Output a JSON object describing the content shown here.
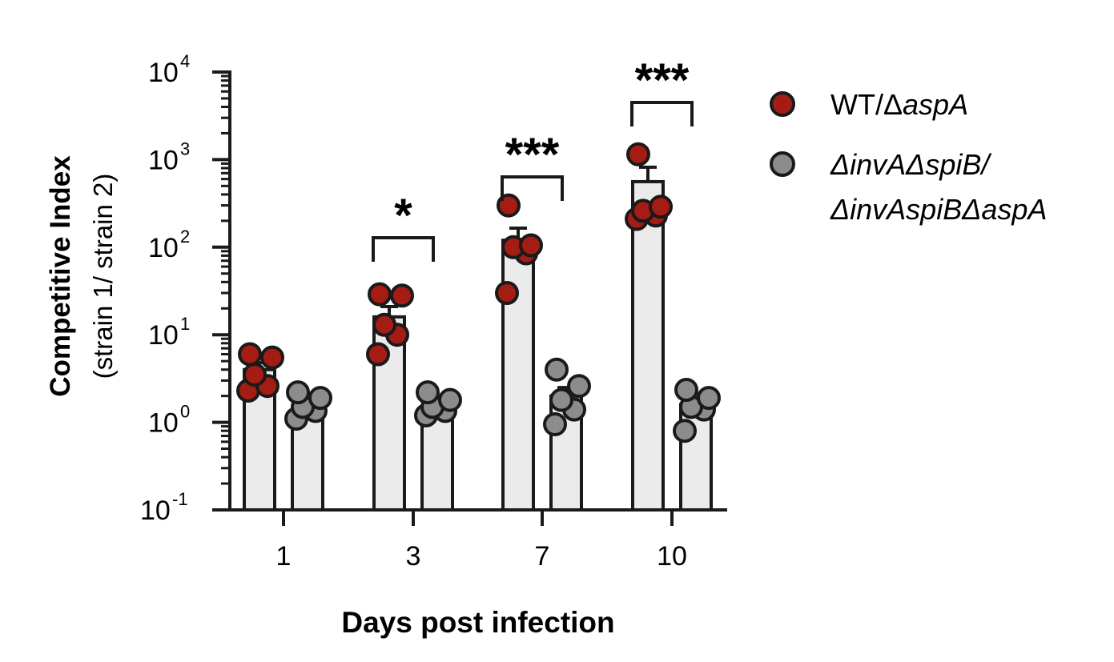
{
  "chart_data": {
    "type": "bar",
    "categories": [
      "1",
      "3",
      "7",
      "10"
    ],
    "yscale": "log",
    "ylim": [
      0.1,
      10000
    ],
    "ytick_base": "10",
    "ytick_exponents": [
      "4",
      "3",
      "2",
      "1",
      "0",
      "-1"
    ],
    "ylabel": "Competitive  Index",
    "ylabel_sub": "(strain 1/ strain 2)",
    "xlabel": "Days post infection",
    "legend_position": "right",
    "colors": {
      "bar_fill": "#ebebeb",
      "series_1": "#a51c14",
      "series_2": "#8c8c8c",
      "stroke": "#1a1a1a"
    },
    "series": [
      {
        "name": "WT/ΔaspA",
        "legend_parts": [
          "WT/Δ",
          "aspA"
        ],
        "values": [
          4,
          16,
          120,
          560
        ],
        "error_upper": [
          4.8,
          21,
          165,
          820
        ],
        "points": [
          [
            2.3,
            2.6,
            3.5,
            5.5,
            6.0
          ],
          [
            6,
            10,
            13,
            28,
            29
          ],
          [
            30,
            85,
            100,
            105,
            300
          ],
          [
            210,
            230,
            260,
            290,
            1150
          ]
        ]
      },
      {
        "name": "ΔinvAΔspiB/ΔinvAspiBΔaspA",
        "legend_lines": [
          "ΔinvAΔspiB/",
          "ΔinvAspiBΔaspA"
        ],
        "values": [
          1.5,
          1.5,
          2,
          1.6
        ],
        "error_upper": [
          1.8,
          1.8,
          2.5,
          1.9
        ],
        "points": [
          [
            1.1,
            1.35,
            1.5,
            1.9,
            2.2
          ],
          [
            1.2,
            1.35,
            1.5,
            1.8,
            2.2
          ],
          [
            0.95,
            1.4,
            1.8,
            2.6,
            4.0
          ],
          [
            0.8,
            1.4,
            1.5,
            1.9,
            2.35
          ]
        ]
      }
    ],
    "significance": [
      "",
      "*",
      "***",
      "***"
    ]
  }
}
